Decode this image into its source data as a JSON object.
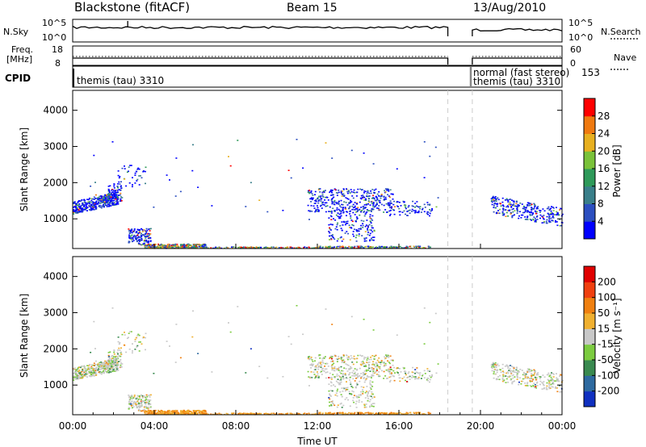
{
  "header": {
    "station": "Blackstone (fitACF)",
    "beam": "Beam 15",
    "date": "13/Aug/2010"
  },
  "strips": {
    "nsky_label": "N.Sky",
    "nsky_ticks": [
      "10^5",
      "10^0"
    ],
    "nsearch_label": "N.Search",
    "nsearch_ticks": [
      "10^5",
      "10^0"
    ],
    "freq_label_1": "Freq.",
    "freq_label_2": "[MHz]",
    "freq_ticks": [
      "18",
      "8"
    ],
    "nave_label": "Nave",
    "nave_ticks": [
      "60",
      "0"
    ],
    "cpid_label": "CPID",
    "cpid_left": "themis (tau) 3310",
    "cpid_right_1": "normal (fast stereo)",
    "cpid_right_2": "themis (tau) 3310",
    "cpid_right_num": "153"
  },
  "chart_data": [
    {
      "type": "heatmap",
      "quantity": "Power",
      "ylabel": "Slant Range [km]",
      "colorbar_label": "Power [dB]",
      "colorbar_ticks": [
        "28",
        "24",
        "20",
        "16",
        "12",
        "8",
        "4"
      ],
      "colors": [
        "#0000ff",
        "#2c4fc0",
        "#3a7f8a",
        "#2f9a5a",
        "#7ac23a",
        "#e8b020",
        "#f07a10",
        "#ff0000"
      ],
      "xlim": [
        0,
        24
      ],
      "ylim": [
        180,
        4550
      ],
      "yticks": [
        1000,
        2000,
        3000,
        4000
      ],
      "data_gap_hours": [
        18.4,
        19.6
      ]
    },
    {
      "type": "heatmap",
      "quantity": "Velocity",
      "ylabel": "Slant Range [km]",
      "colorbar_label": "Velocity [m s⁻¹]",
      "colorbar_ticks": [
        "200",
        "100",
        "50",
        "15",
        "-15",
        "-50",
        "-100",
        "-200"
      ],
      "colors": [
        "#1030c0",
        "#2e6aa0",
        "#3a8a50",
        "#7ccc40",
        "#c8c8c8",
        "#f0b030",
        "#f08010",
        "#f04010",
        "#e00000"
      ],
      "xlim": [
        0,
        24
      ],
      "ylim": [
        180,
        4550
      ],
      "yticks": [
        1000,
        2000,
        3000,
        4000
      ],
      "data_gap_hours": [
        18.4,
        19.6
      ]
    }
  ],
  "xaxis": {
    "label": "Time UT",
    "ticks": [
      "00:00",
      "04:00",
      "08:00",
      "12:00",
      "16:00",
      "20:00",
      "00:00"
    ]
  }
}
